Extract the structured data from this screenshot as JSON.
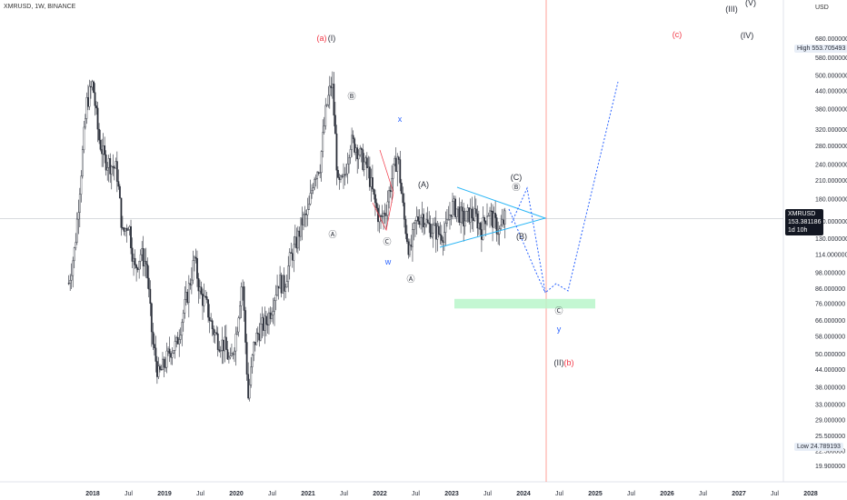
{
  "header": {
    "title": "XMRUSD, 1W, BINANCE",
    "currency": "USD"
  },
  "markers": {
    "high_label": "High",
    "high_value": "553.705493",
    "low_label": "Low",
    "low_value": "24.789193",
    "current_symbol": "XMRUSD",
    "current_value": "153.381186",
    "current_countdown": "1d 10h"
  },
  "colors": {
    "candles": "#2a2e39",
    "triangle": "#29b6f6",
    "projection": "#2962ff",
    "target_zone": "#b9f6ca",
    "red_labels": "#f23645",
    "vertical_line": "#ff8a80"
  },
  "chart_data": {
    "type": "candlestick",
    "title": "XMRUSD, 1W, BINANCE",
    "xlabel": "",
    "ylabel": "",
    "y_scale": "log",
    "ylim": [
      18.5,
      900
    ],
    "x_ticks": [
      "2018",
      "Jul",
      "2019",
      "Jul",
      "2020",
      "Jul",
      "2021",
      "Jul",
      "2022",
      "Jul",
      "2023",
      "Jul",
      "2024",
      "Jul",
      "2025",
      "Jul",
      "2026",
      "Jul",
      "2027",
      "Jul",
      "2028"
    ],
    "y_ticks": [
      "680.000000",
      "580.000000",
      "500.000000",
      "440.000000",
      "380.000000",
      "320.000000",
      "280.000000",
      "240.000000",
      "210.000000",
      "180.000000",
      "150.000000",
      "130.000000",
      "114.000000",
      "98.000000",
      "86.000000",
      "76.000000",
      "66.000000",
      "58.000000",
      "50.000000",
      "44.000000",
      "38.000000",
      "33.000000",
      "29.000000",
      "25.500000",
      "22.500000",
      "19.900000"
    ],
    "price_path": [
      [
        "2017-09",
        90
      ],
      [
        "2017-10",
        120
      ],
      [
        "2017-12",
        400
      ],
      [
        "2018-01",
        470
      ],
      [
        "2018-02",
        300
      ],
      [
        "2018-03",
        250
      ],
      [
        "2018-04",
        240
      ],
      [
        "2018-05",
        230
      ],
      [
        "2018-06",
        135
      ],
      [
        "2018-07",
        150
      ],
      [
        "2018-08",
        100
      ],
      [
        "2018-09",
        115
      ],
      [
        "2018-10",
        105
      ],
      [
        "2018-11",
        55
      ],
      [
        "2018-12",
        42
      ],
      [
        "2019-01",
        46
      ],
      [
        "2019-02",
        52
      ],
      [
        "2019-03",
        54
      ],
      [
        "2019-04",
        68
      ],
      [
        "2019-05",
        85
      ],
      [
        "2019-06",
        110
      ],
      [
        "2019-07",
        82
      ],
      [
        "2019-08",
        75
      ],
      [
        "2019-09",
        62
      ],
      [
        "2019-10",
        56
      ],
      [
        "2019-11",
        54
      ],
      [
        "2019-12",
        46
      ],
      [
        "2020-01",
        60
      ],
      [
        "2020-02",
        95
      ],
      [
        "2020-03",
        35
      ],
      [
        "2020-04",
        55
      ],
      [
        "2020-05",
        62
      ],
      [
        "2020-06",
        65
      ],
      [
        "2020-07",
        75
      ],
      [
        "2020-08",
        92
      ],
      [
        "2020-09",
        88
      ],
      [
        "2020-10",
        110
      ],
      [
        "2020-11",
        125
      ],
      [
        "2020-12",
        150
      ],
      [
        "2021-01",
        160
      ],
      [
        "2021-02",
        220
      ],
      [
        "2021-03",
        240
      ],
      [
        "2021-04",
        380
      ],
      [
        "2021-05",
        480
      ],
      [
        "2021-06",
        200
      ],
      [
        "2021-07",
        210
      ],
      [
        "2021-08",
        290
      ],
      [
        "2021-09",
        280
      ],
      [
        "2021-10",
        250
      ],
      [
        "2021-11",
        230
      ],
      [
        "2021-12",
        180
      ],
      [
        "2022-01",
        150
      ],
      [
        "2022-02",
        165
      ],
      [
        "2022-03",
        215
      ],
      [
        "2022-04",
        260
      ],
      [
        "2022-05",
        155
      ],
      [
        "2022-06",
        115
      ],
      [
        "2022-07",
        150
      ],
      [
        "2022-08",
        160
      ],
      [
        "2022-09",
        145
      ],
      [
        "2022-10",
        140
      ],
      [
        "2022-11",
        135
      ],
      [
        "2022-12",
        138
      ],
      [
        "2023-01",
        170
      ],
      [
        "2023-02",
        165
      ],
      [
        "2023-03",
        150
      ],
      [
        "2023-04",
        160
      ],
      [
        "2023-05",
        155
      ],
      [
        "2023-06",
        140
      ],
      [
        "2023-07",
        165
      ],
      [
        "2023-08",
        150
      ],
      [
        "2023-09",
        138
      ],
      [
        "2023-10",
        155
      ]
    ],
    "annotations": [
      {
        "text": "(a)",
        "color": "#f23645"
      },
      {
        "text": "(I)",
        "color": "#2a2e39"
      },
      {
        "text": "Ⓐ",
        "color": "#2a2e39"
      },
      {
        "text": "Ⓑ",
        "color": "#2a2e39"
      },
      {
        "text": "Ⓒ",
        "color": "#2a2e39"
      },
      {
        "text": "w",
        "color": "#2962ff"
      },
      {
        "text": "x",
        "color": "#2962ff"
      },
      {
        "text": "Ⓐ",
        "color": "#2a2e39"
      },
      {
        "text": "(A)",
        "color": "#2a2e39"
      },
      {
        "text": "(C)",
        "color": "#2a2e39"
      },
      {
        "text": "Ⓑ",
        "color": "#2a2e39"
      },
      {
        "text": "(B)",
        "color": "#2a2e39"
      },
      {
        "text": "Ⓒ",
        "color": "#2a2e39"
      },
      {
        "text": "y",
        "color": "#2962ff"
      },
      {
        "text": "(II)",
        "color": "#2a2e39"
      },
      {
        "text": "(b)",
        "color": "#f23645"
      },
      {
        "text": "(c)",
        "color": "#f23645"
      },
      {
        "text": "(III)",
        "color": "#2a2e39"
      },
      {
        "text": "(IV)",
        "color": "#2a2e39"
      },
      {
        "text": "(V)",
        "color": "#2a2e39"
      }
    ],
    "target_zone": [
      73,
      79
    ],
    "grid": false,
    "legend": "none"
  }
}
